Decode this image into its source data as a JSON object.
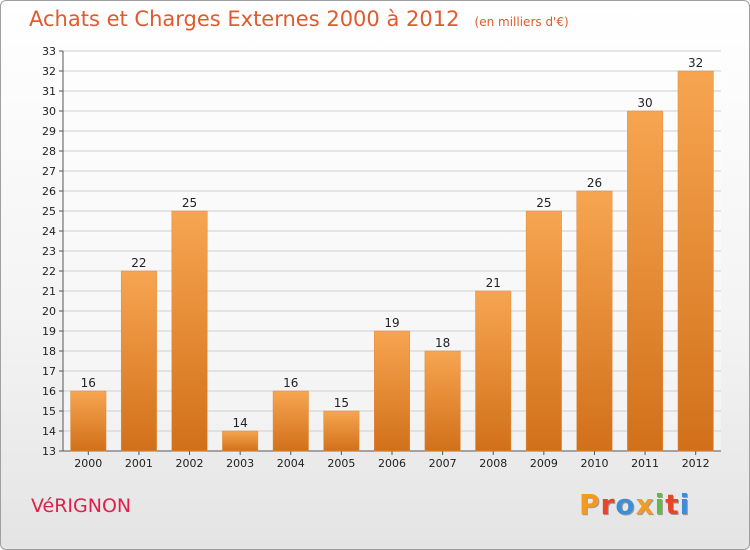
{
  "title": "Achats et Charges Externes 2000 à 2012",
  "unit": "(en milliers d'€)",
  "place": "VéRIGNON",
  "logo": {
    "text": "Proxiti",
    "colors": [
      "#f39a1f",
      "#e8432b",
      "#3c8fd6",
      "#f39a1f",
      "#64b848",
      "#e8432b",
      "#3c8fd6"
    ]
  },
  "colors": {
    "title": "#e15a2e",
    "place": "#e0204a",
    "bar_top": "#f7a551",
    "bar_bottom": "#d2701a"
  },
  "chart_data": {
    "type": "bar",
    "title": "Achats et Charges Externes 2000 à 2012",
    "subtitle": "(en milliers d'€)",
    "xlabel": "",
    "ylabel": "",
    "categories": [
      "2000",
      "2001",
      "2002",
      "2003",
      "2004",
      "2005",
      "2006",
      "2007",
      "2008",
      "2009",
      "2010",
      "2011",
      "2012"
    ],
    "values": [
      16,
      22,
      25,
      14,
      16,
      15,
      19,
      18,
      21,
      25,
      26,
      30,
      32
    ],
    "ylim": [
      13,
      33
    ],
    "yticks": [
      13,
      14,
      15,
      16,
      17,
      18,
      19,
      20,
      21,
      22,
      23,
      24,
      25,
      26,
      27,
      28,
      29,
      30,
      31,
      32,
      33
    ],
    "grid": true,
    "legend": "none"
  }
}
